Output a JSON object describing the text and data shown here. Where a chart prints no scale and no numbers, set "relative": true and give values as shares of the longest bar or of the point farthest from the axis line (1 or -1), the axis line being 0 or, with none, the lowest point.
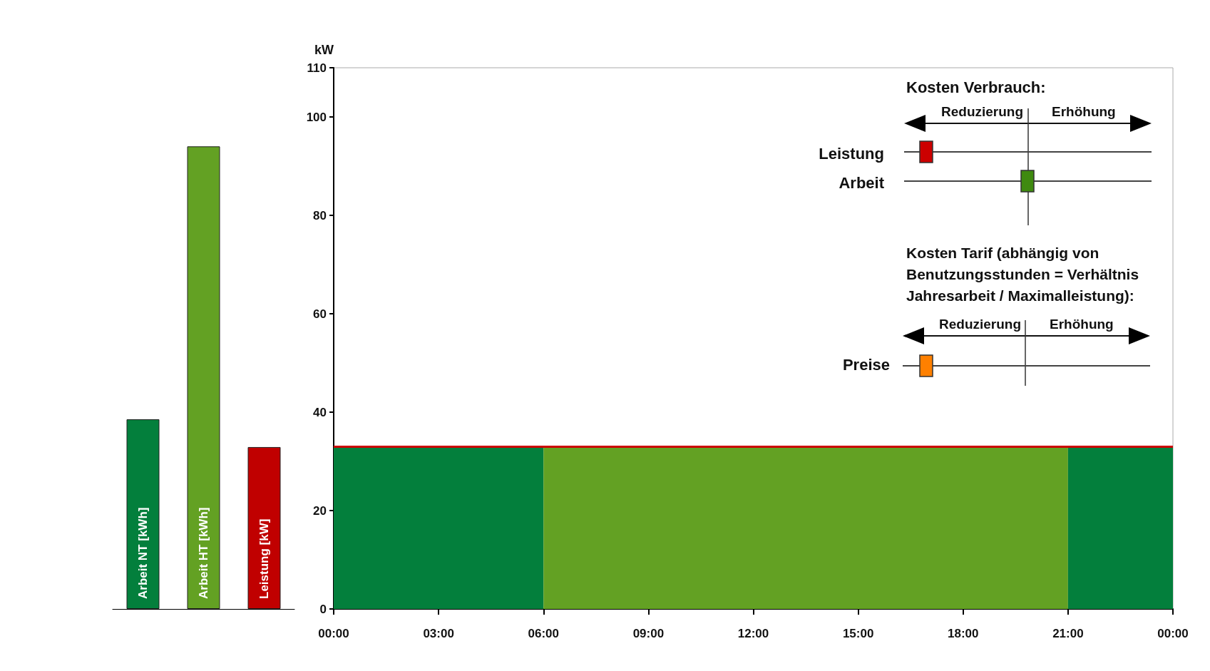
{
  "chart_data": [
    {
      "type": "bar",
      "relative": true,
      "categories": [
        "Arbeit NT [kWh]",
        "Arbeit HT [kWh]",
        "Leistung [kW]"
      ],
      "values": [
        0.41,
        1,
        0.35
      ],
      "colors": [
        "#037f3c",
        "#63a123",
        "#c00000"
      ]
    },
    {
      "type": "area",
      "ylabel": "kW",
      "xlim": [
        0,
        24
      ],
      "ylim": [
        0,
        110
      ],
      "xticks": [
        {
          "value": 0,
          "label": "00:00"
        },
        {
          "value": 3,
          "label": "03:00"
        },
        {
          "value": 6,
          "label": "06:00"
        },
        {
          "value": 9,
          "label": "09:00"
        },
        {
          "value": 12,
          "label": "12:00"
        },
        {
          "value": 15,
          "label": "15:00"
        },
        {
          "value": 18,
          "label": "18:00"
        },
        {
          "value": 21,
          "label": "21:00"
        },
        {
          "value": 24,
          "label": "00:00"
        }
      ],
      "yticks": [
        0,
        20,
        40,
        60,
        80,
        100,
        110
      ],
      "series": [
        {
          "color": "#037f3c",
          "x": [
            0,
            6
          ],
          "values": [
            33,
            33
          ]
        },
        {
          "color": "#63a123",
          "x": [
            6,
            21
          ],
          "values": [
            33,
            33
          ]
        },
        {
          "color": "#037f3c",
          "x": [
            21,
            24
          ],
          "values": [
            33,
            33
          ]
        }
      ],
      "ref_lines": [
        {
          "axis": "y",
          "value": 33,
          "color": "#cc0000"
        }
      ],
      "grid": false,
      "annotations": [
        "Kosten Verbrauch:",
        "Reduzierung",
        "Erhöhung",
        "Leistung",
        "Arbeit",
        "Kosten Tarif (abhängig von Benutzungsstunden = Verhältnis Jahresarbeit / Maximalleistung):",
        "Reduzierung",
        "Erhöhung",
        "Preise"
      ]
    }
  ]
}
